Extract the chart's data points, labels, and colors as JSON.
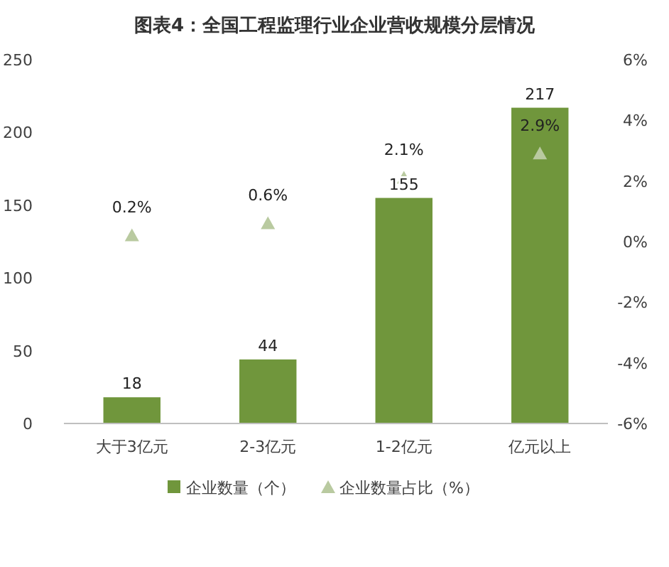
{
  "chart_data": {
    "type": "bar",
    "title": "图表4：全国工程监理行业企业营收规模分层情况",
    "categories": [
      "大于3亿元",
      "2-3亿元",
      "1-2亿元",
      "亿元以上"
    ],
    "series": [
      {
        "name": "企业数量（个）",
        "color": "#70963c",
        "values": [
          18,
          44,
          155,
          217
        ],
        "value_labels": [
          "18",
          "44",
          "155",
          "217"
        ]
      },
      {
        "name": "企业数量占比（%）",
        "type": "scatter",
        "axis": "y2",
        "marker": "triangle",
        "color": "#b9caa0",
        "values": [
          0.2,
          0.6,
          2.1,
          2.9
        ],
        "value_labels": [
          "0.2%",
          "0.6%",
          "2.1%",
          "2.9%"
        ]
      }
    ],
    "ylim": [
      0,
      250
    ],
    "yticks": [
      0,
      50,
      100,
      150,
      200,
      250
    ],
    "y2lim": [
      -6,
      6
    ],
    "y2ticks": [
      {
        "value": -6,
        "label": "-6%"
      },
      {
        "value": -4,
        "label": "-4%"
      },
      {
        "value": -2,
        "label": "-2%"
      },
      {
        "value": 0,
        "label": "0%"
      },
      {
        "value": 2,
        "label": "2%"
      },
      {
        "value": 4,
        "label": "4%"
      },
      {
        "value": 6,
        "label": "6%"
      }
    ],
    "grid": false,
    "legend": "bottom"
  }
}
